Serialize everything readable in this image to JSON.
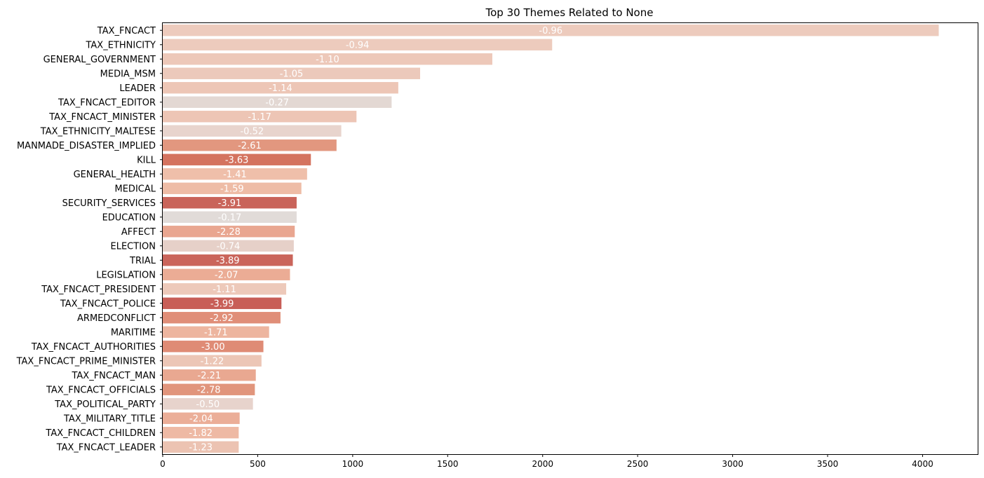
{
  "chart_data": {
    "type": "bar",
    "orientation": "horizontal",
    "title": "Top 30 Themes Related to None",
    "xlabel": "",
    "ylabel": "",
    "xlim": [
      0,
      4290
    ],
    "xticks": [
      0,
      500,
      1000,
      1500,
      2000,
      2500,
      3000,
      3500,
      4000
    ],
    "grid": false,
    "categories": [
      "TAX_FNCACT",
      "TAX_ETHNICITY",
      "GENERAL_GOVERNMENT",
      "MEDIA_MSM",
      "LEADER",
      "TAX_FNCACT_EDITOR",
      "TAX_FNCACT_MINISTER",
      "TAX_ETHNICITY_MALTESE",
      "MANMADE_DISASTER_IMPLIED",
      "KILL",
      "GENERAL_HEALTH",
      "MEDICAL",
      "SECURITY_SERVICES",
      "EDUCATION",
      "AFFECT",
      "ELECTION",
      "TRIAL",
      "LEGISLATION",
      "TAX_FNCACT_PRESIDENT",
      "TAX_FNCACT_POLICE",
      "ARMEDCONFLICT",
      "MARITIME",
      "TAX_FNCACT_AUTHORITIES",
      "TAX_FNCACT_PRIME_MINISTER",
      "TAX_FNCACT_MAN",
      "TAX_FNCACT_OFFICIALS",
      "TAX_POLITICAL_PARTY",
      "TAX_MILITARY_TITLE",
      "TAX_FNCACT_CHILDREN",
      "TAX_FNCACT_LEADER"
    ],
    "values": [
      4085,
      2050,
      1735,
      1355,
      1240,
      1205,
      1020,
      940,
      915,
      780,
      760,
      730,
      705,
      705,
      695,
      690,
      685,
      670,
      650,
      625,
      620,
      560,
      530,
      520,
      490,
      485,
      475,
      405,
      400,
      400
    ],
    "labels": [
      "-0.96",
      "-0.94",
      "-1.10",
      "-1.05",
      "-1.14",
      "-0.27",
      "-1.17",
      "-0.52",
      "-2.61",
      "-3.63",
      "-1.41",
      "-1.59",
      "-3.91",
      "-0.17",
      "-2.28",
      "-0.74",
      "-3.89",
      "-2.07",
      "-1.11",
      "-3.99",
      "-2.92",
      "-1.71",
      "-3.00",
      "-1.22",
      "-2.21",
      "-2.78",
      "-0.50",
      "-2.04",
      "-1.82",
      "-1.23"
    ],
    "colors": [
      "#edcbbd",
      "#edcbbd",
      "#edc8b9",
      "#ecc9bb",
      "#edc6b6",
      "#e3d8d3",
      "#edc5b5",
      "#e8d4cd",
      "#e2977f",
      "#d4735f",
      "#efbfaa",
      "#eebca6",
      "#c9645a",
      "#e1dbd8",
      "#e9a690",
      "#e6d0c8",
      "#ca655b",
      "#ebac95",
      "#edc9ba",
      "#c85e57",
      "#e08e78",
      "#edb59f",
      "#df8b75",
      "#ecc6b6",
      "#e9a891",
      "#e1957c",
      "#e7d3cc",
      "#ebae98",
      "#eeb9a4",
      "#ecc3b2"
    ]
  }
}
